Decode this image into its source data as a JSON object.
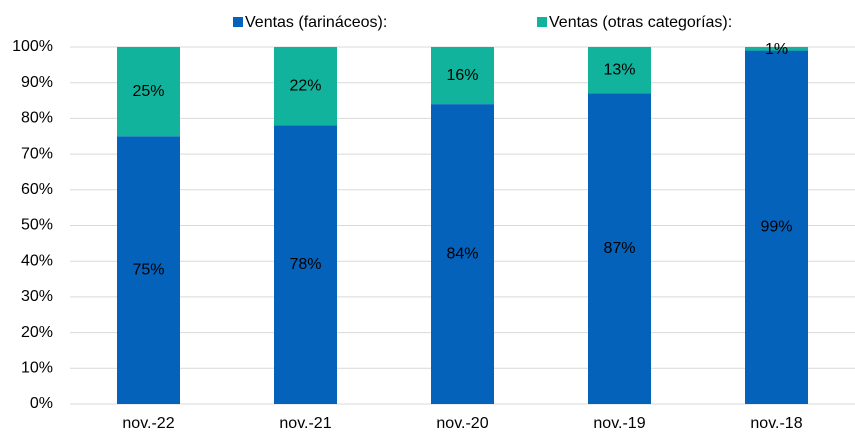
{
  "chart_data": {
    "type": "bar",
    "stacked": true,
    "categories": [
      "nov.-22",
      "nov.-21",
      "nov.-20",
      "nov.-19",
      "nov.-18"
    ],
    "series": [
      {
        "name": "Ventas (farináceos):",
        "color": "#0562bb",
        "values": [
          75,
          78,
          84,
          87,
          99
        ],
        "value_labels": [
          "75%",
          "78%",
          "84%",
          "87%",
          "99%"
        ]
      },
      {
        "name": "Ventas (otras categorías):",
        "color": "#12b39c",
        "values": [
          25,
          22,
          16,
          13,
          1
        ],
        "value_labels": [
          "25%",
          "22%",
          "16%",
          "13%",
          "1%"
        ]
      }
    ],
    "ylim": [
      0,
      100
    ],
    "yticks": [
      {
        "value": 0,
        "label": "0%"
      },
      {
        "value": 10,
        "label": "10%"
      },
      {
        "value": 20,
        "label": "20%"
      },
      {
        "value": 30,
        "label": "30%"
      },
      {
        "value": 40,
        "label": "40%"
      },
      {
        "value": 50,
        "label": "50%"
      },
      {
        "value": 60,
        "label": "60%"
      },
      {
        "value": 70,
        "label": "70%"
      },
      {
        "value": 80,
        "label": "80%"
      },
      {
        "value": 90,
        "label": "90%"
      },
      {
        "value": 100,
        "label": "100%"
      }
    ],
    "grid": true,
    "legend": "top"
  }
}
